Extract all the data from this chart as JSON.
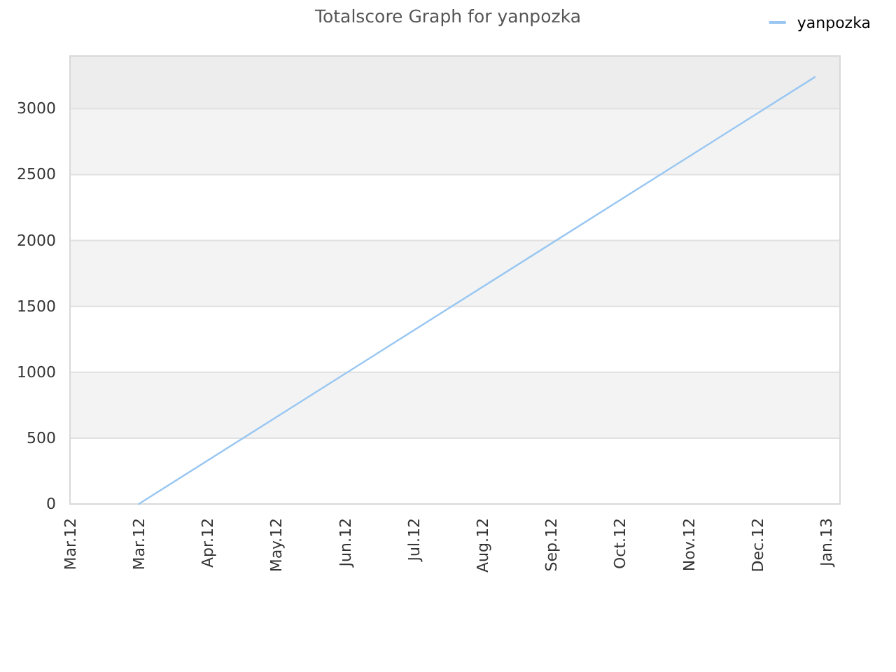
{
  "chart_data": {
    "type": "line",
    "title": "Totalscore Graph for yanpozka",
    "x": [
      "2012-03-31",
      "2013-01-20"
    ],
    "series": [
      {
        "name": "yanpozka",
        "color": "#99c7f2",
        "values": [
          0,
          3240
        ]
      }
    ],
    "xlim": [
      "2012-03-01",
      "2013-01-31"
    ],
    "xticks": [
      {
        "value": "2012-03-01",
        "label": "Mar.12"
      },
      {
        "value": "2012-03-31",
        "label": "Mar.12"
      },
      {
        "value": "2012-04-30",
        "label": "Apr.12"
      },
      {
        "value": "2012-05-30",
        "label": "May.12"
      },
      {
        "value": "2012-06-29",
        "label": "Jun.12"
      },
      {
        "value": "2012-07-29",
        "label": "Jul.12"
      },
      {
        "value": "2012-08-28",
        "label": "Aug.12"
      },
      {
        "value": "2012-09-27",
        "label": "Sep.12"
      },
      {
        "value": "2012-10-27",
        "label": "Oct.12"
      },
      {
        "value": "2012-11-26",
        "label": "Nov.12"
      },
      {
        "value": "2012-12-26",
        "label": "Dec.12"
      },
      {
        "value": "2013-01-25",
        "label": "Jan.13"
      }
    ],
    "ylim": [
      0,
      3400
    ],
    "yticks": [
      0,
      500,
      1000,
      1500,
      2000,
      2500,
      3000
    ],
    "bands": [
      {
        "axis": "y",
        "from": 500,
        "to": 1000,
        "color": "#f3f3f3"
      },
      {
        "axis": "y",
        "from": 1500,
        "to": 2000,
        "color": "#f3f3f3"
      },
      {
        "axis": "y",
        "from": 2500,
        "to": 3000,
        "color": "#f3f3f3"
      },
      {
        "axis": "y",
        "from": 3000,
        "to": 3400,
        "color": "#ededed"
      }
    ],
    "grid": "y",
    "legend": "top right",
    "marker": "none",
    "line_style": "solid"
  }
}
